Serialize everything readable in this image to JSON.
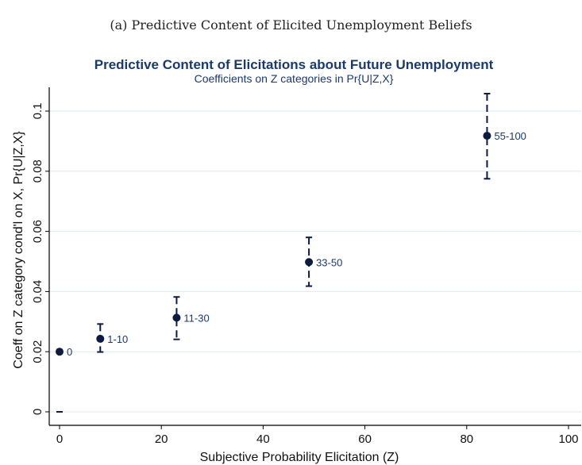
{
  "caption": "(a) Predictive Content of Elicited Unemployment Beliefs",
  "chart_data": {
    "type": "scatter",
    "title": "Predictive Content of Elicitations about Future Unemployment",
    "subtitle": "Coefficients on Z categories in Pr{U|Z,X}",
    "xlabel": "Subjective Probability Elicitation (Z)",
    "ylabel": "Coeff on Z category cond'l on X, Pr{U|Z,X}",
    "xlim": [
      0,
      100
    ],
    "ylim": [
      0,
      0.1
    ],
    "xticks": [
      0,
      20,
      40,
      60,
      80,
      100
    ],
    "yticks": [
      0,
      0.02,
      0.04,
      0.06,
      0.08,
      0.1
    ],
    "grid": true,
    "points": [
      {
        "label": "0",
        "x": 0,
        "y": 0.02,
        "lo": 0.0,
        "hi": 0.0
      },
      {
        "label": "1-10",
        "x": 8,
        "y": 0.0243,
        "lo": 0.0199,
        "hi": 0.0292
      },
      {
        "label": "11-30",
        "x": 23,
        "y": 0.0313,
        "lo": 0.0241,
        "hi": 0.0382
      },
      {
        "label": "33-50",
        "x": 49,
        "y": 0.0498,
        "lo": 0.0418,
        "hi": 0.058
      },
      {
        "label": "55-100",
        "x": 84,
        "y": 0.0918,
        "lo": 0.0775,
        "hi": 0.1058
      }
    ],
    "colors": {
      "marker": "#0d1b3e",
      "label": "#1a3a6b",
      "grid": "#dde9f1",
      "title": "#1a3a6b"
    }
  }
}
